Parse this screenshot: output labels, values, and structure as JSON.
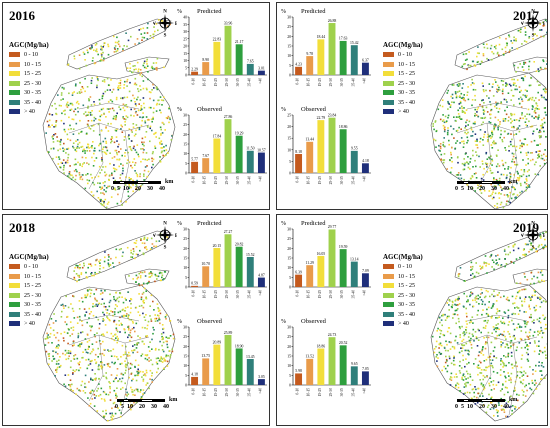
{
  "legend_title": "AGC(Mg/ha)",
  "legend_classes": [
    {
      "label": "0 - 10",
      "color": "#c45a1e"
    },
    {
      "label": "10 - 15",
      "color": "#e99b4a"
    },
    {
      "label": "15 - 25",
      "color": "#f2de3a"
    },
    {
      "label": "25 - 30",
      "color": "#9fd14c"
    },
    {
      "label": "30 - 35",
      "color": "#2e9f3e"
    },
    {
      "label": "35 - 40",
      "color": "#2f7f7a"
    },
    {
      "label": "> 40",
      "color": "#1f2f7a"
    }
  ],
  "scale": {
    "labels": [
      "0",
      "5",
      "10",
      "20",
      "30",
      "40"
    ],
    "unit": "km"
  },
  "compass": {
    "n": "N",
    "s": "S",
    "e": "E",
    "w": "W"
  },
  "chart_labels": {
    "percent": "%",
    "predicted": "Predicted",
    "observed": "Observed"
  },
  "panels": [
    {
      "year": "2016"
    },
    {
      "year": "2017"
    },
    {
      "year": "2018"
    },
    {
      "year": "2019"
    }
  ],
  "chart_data": [
    {
      "type": "bar",
      "panel": "2016",
      "title": "Predicted",
      "ylabel": "%",
      "categories": [
        "0-10",
        "10-15",
        "15-25",
        "25-30",
        "30-35",
        "35-40",
        ">40"
      ],
      "values": [
        2.29,
        8.9,
        22.83,
        33.96,
        21.17,
        7.65,
        3.01
      ],
      "ylim": [
        0,
        40
      ],
      "yticks": [
        0,
        5,
        10,
        15,
        20,
        25,
        30,
        35,
        40
      ]
    },
    {
      "type": "bar",
      "panel": "2016",
      "title": "Observed",
      "ylabel": "%",
      "categories": [
        "0-10",
        "10-15",
        "15-25",
        "25-30",
        "30-35",
        "35-40",
        ">40"
      ],
      "values": [
        5.77,
        7.67,
        17.84,
        27.86,
        19.29,
        11.5,
        10.57
      ],
      "ylim": [
        0,
        30
      ],
      "yticks": [
        0,
        5,
        10,
        15,
        20,
        25,
        30
      ]
    },
    {
      "type": "bar",
      "panel": "2017",
      "title": "Predicted",
      "ylabel": "%",
      "categories": [
        "0-10",
        "10-15",
        "15-25",
        "25-30",
        "30-35",
        "35-40",
        ">40"
      ],
      "values": [
        4.23,
        9.78,
        18.44,
        26.88,
        17.63,
        15.42,
        6.37
      ],
      "ylim": [
        0,
        30
      ],
      "yticks": [
        0,
        5,
        10,
        15,
        20,
        25,
        30
      ]
    },
    {
      "type": "bar",
      "panel": "2017",
      "title": "Observed",
      "ylabel": "%",
      "categories": [
        "0-10",
        "10-15",
        "15-25",
        "25-30",
        "30-35",
        "35-40",
        ">40"
      ],
      "values": [
        8.18,
        13.44,
        22.79,
        23.84,
        18.86,
        9.55,
        4.18
      ],
      "ylim": [
        0,
        25
      ],
      "yticks": [
        0,
        5,
        10,
        15,
        20,
        25
      ]
    },
    {
      "type": "bar",
      "panel": "2018",
      "title": "Predicted",
      "ylabel": "%",
      "categories": [
        "0-10",
        "10-15",
        "15-25",
        "25-30",
        "30-35",
        "35-40",
        ">40"
      ],
      "values": [
        0.59,
        10.7,
        20.15,
        27.27,
        20.82,
        15.52,
        4.87
      ],
      "ylim": [
        0,
        30
      ],
      "yticks": [
        0,
        5,
        10,
        15,
        20,
        25,
        30
      ]
    },
    {
      "type": "bar",
      "panel": "2018",
      "title": "Observed",
      "ylabel": "%",
      "categories": [
        "0-10",
        "10-15",
        "15-25",
        "25-30",
        "30-35",
        "35-40",
        ">40"
      ],
      "values": [
        4.18,
        13.75,
        20.89,
        25.89,
        18.9,
        13.45,
        3.05
      ],
      "ylim": [
        0,
        30
      ],
      "yticks": [
        0,
        5,
        10,
        15,
        20,
        25,
        30
      ]
    },
    {
      "type": "bar",
      "panel": "2019",
      "title": "Predicted",
      "ylabel": "%",
      "categories": [
        "0-10",
        "10-15",
        "15-25",
        "25-30",
        "30-35",
        "35-40",
        ">40"
      ],
      "values": [
        6.39,
        11.29,
        16.05,
        29.77,
        19.59,
        13.14,
        7.09
      ],
      "ylim": [
        0,
        30
      ],
      "yticks": [
        0,
        5,
        10,
        15,
        20,
        25,
        30
      ]
    },
    {
      "type": "bar",
      "panel": "2019",
      "title": "Observed",
      "ylabel": "%",
      "categories": [
        "0-10",
        "10-15",
        "15-25",
        "25-30",
        "30-35",
        "35-40",
        ">40"
      ],
      "values": [
        5.98,
        13.52,
        18.86,
        24.73,
        20.52,
        9.65,
        7.05
      ],
      "ylim": [
        0,
        30
      ],
      "yticks": [
        0,
        5,
        10,
        15,
        20,
        25,
        30
      ]
    }
  ]
}
